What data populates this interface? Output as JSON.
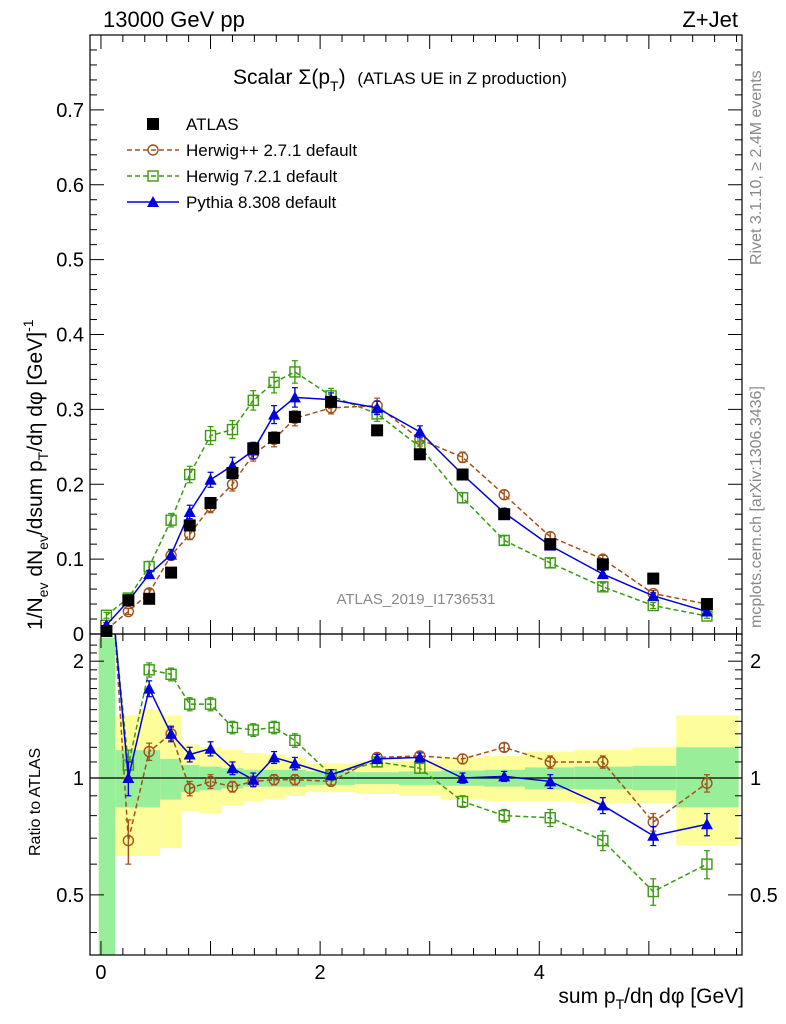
{
  "header": {
    "left": "13000 GeV pp",
    "right": "Z+Jet"
  },
  "side_texts": {
    "rivet": "Rivet 3.1.10, ≥ 2.4M events",
    "mcplots": "mcplots.cern.ch [arXiv:1306.3436]"
  },
  "watermark": "ATLAS_2019_I1736531",
  "chart_data": [
    {
      "type": "line",
      "title_main": "Scalar Σ(p",
      "title_sub": "T",
      "title_close": ")",
      "title_extra": "(ATLAS UE in Z production)",
      "ylabel": "1/N_ev dN_ev/dsum p_T/dη dφ [GeV]^-1",
      "xlim": [
        -0.1,
        5.85
      ],
      "ylim": [
        0,
        0.8
      ],
      "y_ticks": [
        {
          "value": 0,
          "label": "0"
        },
        {
          "value": 0.1,
          "label": "0.1"
        },
        {
          "value": 0.2,
          "label": "0.2"
        },
        {
          "value": 0.3,
          "label": "0.3"
        },
        {
          "value": 0.4,
          "label": "0.4"
        },
        {
          "value": 0.5,
          "label": "0.5"
        },
        {
          "value": 0.6,
          "label": "0.6"
        },
        {
          "value": 0.7,
          "label": "0.7"
        }
      ],
      "legend_placement": "top-left",
      "series": [
        {
          "name": "ATLAS",
          "marker": "filled-square",
          "color": "#000000",
          "x": [
            0.05,
            0.25,
            0.44,
            0.64,
            0.81,
            1.0,
            1.2,
            1.39,
            1.58,
            1.77,
            2.1,
            2.52,
            2.91,
            3.3,
            3.68,
            4.1,
            4.58,
            5.04,
            5.53
          ],
          "y": [
            0.004,
            0.045,
            0.047,
            0.082,
            0.145,
            0.175,
            0.215,
            0.248,
            0.262,
            0.29,
            0.31,
            0.272,
            0.24,
            0.213,
            0.16,
            0.12,
            0.093,
            0.074,
            0.04
          ]
        },
        {
          "name": "Herwig++ 2.7.1 default",
          "marker": "open-circle",
          "color": "#a0521a",
          "dashed": true,
          "x": [
            0.05,
            0.25,
            0.44,
            0.64,
            0.81,
            1.0,
            1.2,
            1.39,
            1.58,
            1.77,
            2.1,
            2.52,
            2.91,
            3.3,
            3.68,
            4.1,
            4.58,
            5.04,
            5.53
          ],
          "y": [
            0.006,
            0.03,
            0.055,
            0.105,
            0.133,
            0.17,
            0.2,
            0.24,
            0.26,
            0.288,
            0.302,
            0.305,
            0.26,
            0.236,
            0.186,
            0.13,
            0.1,
            0.054,
            0.04
          ],
          "err": [
            0.003,
            0.004,
            0.005,
            0.006,
            0.007,
            0.008,
            0.009,
            0.009,
            0.01,
            0.01,
            0.008,
            0.01,
            0.009,
            0.007,
            0.006,
            0.006,
            0.005,
            0.004,
            0.003
          ]
        },
        {
          "name": "Herwig 7.2.1 default",
          "marker": "open-square",
          "color": "#3a9a10",
          "dashed": true,
          "x": [
            0.05,
            0.25,
            0.44,
            0.64,
            0.81,
            1.0,
            1.2,
            1.39,
            1.58,
            1.77,
            2.1,
            2.52,
            2.91,
            3.3,
            3.68,
            4.1,
            4.58,
            5.04,
            5.53
          ],
          "y": [
            0.025,
            0.048,
            0.09,
            0.152,
            0.213,
            0.265,
            0.273,
            0.312,
            0.336,
            0.35,
            0.318,
            0.294,
            0.25,
            0.182,
            0.125,
            0.095,
            0.063,
            0.038,
            0.024
          ],
          "err": [
            0.004,
            0.005,
            0.007,
            0.009,
            0.011,
            0.012,
            0.012,
            0.013,
            0.014,
            0.015,
            0.01,
            0.01,
            0.009,
            0.007,
            0.006,
            0.006,
            0.005,
            0.004,
            0.003
          ]
        },
        {
          "name": "Pythia 8.308 default",
          "marker": "filled-triangle",
          "color": "#0000dd",
          "dashed": false,
          "x": [
            0.05,
            0.25,
            0.44,
            0.64,
            0.81,
            1.0,
            1.2,
            1.39,
            1.58,
            1.77,
            2.1,
            2.52,
            2.91,
            3.3,
            3.68,
            4.1,
            4.58,
            5.04,
            5.53
          ],
          "y": [
            0.012,
            0.044,
            0.08,
            0.106,
            0.163,
            0.206,
            0.225,
            0.245,
            0.293,
            0.316,
            0.313,
            0.302,
            0.27,
            0.213,
            0.162,
            0.118,
            0.08,
            0.051,
            0.03
          ],
          "err": [
            0.003,
            0.004,
            0.005,
            0.007,
            0.009,
            0.01,
            0.011,
            0.011,
            0.012,
            0.013,
            0.009,
            0.009,
            0.008,
            0.007,
            0.006,
            0.005,
            0.005,
            0.004,
            0.003
          ]
        }
      ]
    },
    {
      "type": "line",
      "ylabel": "Ratio to ATLAS",
      "xlabel": "sum p_T/dη dφ [GeV]",
      "xlim": [
        -0.1,
        5.85
      ],
      "ylim": [
        0.35,
        2.35
      ],
      "log_y": true,
      "y_ticks": [
        {
          "value": 0.5,
          "label": "0.5"
        },
        {
          "value": 1,
          "label": "1"
        },
        {
          "value": 2,
          "label": "2"
        }
      ],
      "x_ticks": [
        {
          "value": 0,
          "label": "0"
        },
        {
          "value": 2,
          "label": "2"
        },
        {
          "value": 4,
          "label": "4"
        }
      ],
      "bands": {
        "x_edges": [
          -0.02,
          0.13,
          0.34,
          0.54,
          0.73,
          0.9,
          1.1,
          1.3,
          1.48,
          1.68,
          1.87,
          2.32,
          2.72,
          3.1,
          3.5,
          3.87,
          4.32,
          4.85,
          5.25,
          5.82
        ],
        "stat_lo": [
          0.35,
          0.84,
          0.84,
          0.88,
          0.92,
          0.93,
          0.94,
          0.95,
          0.95,
          0.95,
          0.96,
          0.965,
          0.96,
          0.955,
          0.95,
          0.935,
          0.935,
          0.93,
          0.84
        ],
        "stat_hi": [
          2.3,
          1.18,
          1.18,
          1.12,
          1.08,
          1.07,
          1.06,
          1.05,
          1.05,
          1.05,
          1.04,
          1.035,
          1.04,
          1.045,
          1.05,
          1.065,
          1.07,
          1.075,
          1.2
        ],
        "total_lo": [
          0.35,
          0.63,
          0.63,
          0.66,
          0.82,
          0.81,
          0.85,
          0.87,
          0.88,
          0.9,
          0.92,
          0.91,
          0.9,
          0.88,
          0.87,
          0.87,
          0.86,
          0.86,
          0.67
        ],
        "total_hi": [
          2.3,
          1.45,
          1.5,
          1.45,
          1.22,
          1.2,
          1.18,
          1.16,
          1.15,
          1.13,
          1.09,
          1.1,
          1.11,
          1.13,
          1.14,
          1.17,
          1.18,
          1.2,
          1.45
        ]
      },
      "series": [
        {
          "name": "Herwig++ 2.7.1 default",
          "x": [
            0.25,
            0.44,
            0.64,
            0.81,
            1.0,
            1.2,
            1.39,
            1.58,
            1.77,
            2.1,
            2.52,
            2.91,
            3.3,
            3.68,
            4.1,
            4.58,
            5.04,
            5.53
          ],
          "y": [
            0.69,
            1.17,
            1.3,
            0.94,
            0.98,
            0.95,
            0.98,
            0.99,
            0.99,
            0.98,
            1.13,
            1.14,
            1.12,
            1.2,
            1.1,
            1.1,
            0.77,
            0.97
          ],
          "err": [
            0.09,
            0.06,
            0.05,
            0.04,
            0.04,
            0.03,
            0.03,
            0.03,
            0.03,
            0.02,
            0.03,
            0.03,
            0.03,
            0.03,
            0.04,
            0.04,
            0.04,
            0.05
          ]
        },
        {
          "name": "Herwig 7.2.1 default",
          "x": [
            0.25,
            0.44,
            0.64,
            0.81,
            1.0,
            1.2,
            1.39,
            1.58,
            1.77,
            2.1,
            2.52,
            2.91,
            3.3,
            3.68,
            4.1,
            4.58,
            5.04,
            5.53
          ],
          "y": [
            1.08,
            1.9,
            1.85,
            1.55,
            1.55,
            1.35,
            1.33,
            1.35,
            1.25,
            1.02,
            1.1,
            1.06,
            0.87,
            0.8,
            0.79,
            0.69,
            0.51,
            0.6
          ],
          "err": [
            0.1,
            0.08,
            0.07,
            0.06,
            0.06,
            0.05,
            0.05,
            0.05,
            0.05,
            0.03,
            0.03,
            0.03,
            0.03,
            0.03,
            0.04,
            0.04,
            0.04,
            0.05
          ]
        },
        {
          "name": "Pythia 8.308 default",
          "x": [
            0.25,
            0.44,
            0.64,
            0.81,
            1.0,
            1.2,
            1.39,
            1.58,
            1.77,
            2.1,
            2.52,
            2.91,
            3.3,
            3.68,
            4.1,
            4.58,
            5.04,
            5.53
          ],
          "y": [
            1.0,
            1.7,
            1.3,
            1.15,
            1.19,
            1.06,
            0.99,
            1.13,
            1.09,
            1.02,
            1.12,
            1.13,
            1.0,
            1.01,
            0.98,
            0.85,
            0.71,
            0.76
          ],
          "err": [
            0.1,
            0.08,
            0.06,
            0.05,
            0.05,
            0.04,
            0.04,
            0.04,
            0.04,
            0.03,
            0.03,
            0.03,
            0.03,
            0.03,
            0.04,
            0.04,
            0.04,
            0.05
          ]
        }
      ]
    }
  ]
}
